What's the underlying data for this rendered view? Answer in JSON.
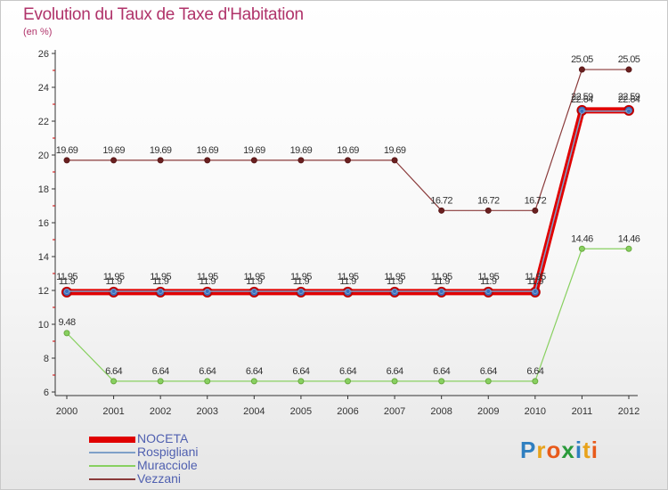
{
  "title": "Evolution du Taux de Taxe d'Habitation",
  "unit_label": "(en %)",
  "logo_letters": [
    "P",
    "r",
    "o",
    "x",
    "i",
    "t",
    "i"
  ],
  "logo_colors": [
    "#2f7fc0",
    "#e8a21a",
    "#e85a1a",
    "#2a9a3a",
    "#2f7fc0",
    "#e8a21a",
    "#e85a1a"
  ],
  "logo_text": "Proxiti",
  "chart_data": {
    "type": "line",
    "title": "Evolution du Taux de Taxe d'Habitation",
    "ylabel": "(en %)",
    "xlabel": "",
    "x": [
      "2000",
      "2001",
      "2002",
      "2003",
      "2004",
      "2005",
      "2006",
      "2007",
      "2008",
      "2009",
      "2010",
      "2011",
      "2012"
    ],
    "ylim": [
      6,
      26
    ],
    "yticks": [
      "6",
      "8",
      "10",
      "12",
      "14",
      "16",
      "18",
      "20",
      "22",
      "24",
      "26"
    ],
    "grid": false,
    "legend_position": "bottom-left",
    "series": [
      {
        "name": "NOCETA",
        "color": "#e00000",
        "values": [
          11.9,
          11.9,
          11.9,
          11.9,
          11.9,
          11.9,
          11.9,
          11.9,
          11.9,
          11.9,
          11.9,
          22.64,
          22.64
        ],
        "labels": [
          "11.9",
          "11.9",
          "11.9",
          "11.9",
          "11.9",
          "11.9",
          "11.9",
          "11.9",
          "11.9",
          "11.9",
          "11.9",
          "22.64",
          "22.64"
        ]
      },
      {
        "name": "Rospigliani",
        "color": "#7fa0c8",
        "values": [
          11.95,
          11.95,
          11.95,
          11.95,
          11.95,
          11.95,
          11.95,
          11.95,
          11.95,
          11.95,
          11.95,
          22.59,
          22.59
        ],
        "labels": [
          "11.95",
          "11.95",
          "11.95",
          "11.95",
          "11.95",
          "11.95",
          "11.95",
          "11.95",
          "11.95",
          "11.95",
          "11.95",
          "22.59",
          "22.59"
        ]
      },
      {
        "name": "Muracciole",
        "color": "#88d060",
        "values": [
          9.48,
          6.64,
          6.64,
          6.64,
          6.64,
          6.64,
          6.64,
          6.64,
          6.64,
          6.64,
          6.64,
          14.46,
          14.46
        ],
        "labels": [
          "9.48",
          "6.64",
          "6.64",
          "6.64",
          "6.64",
          "6.64",
          "6.64",
          "6.64",
          "6.64",
          "6.64",
          "6.64",
          "14.46",
          "14.46"
        ]
      },
      {
        "name": "Vezzani",
        "color": "#8a3a3a",
        "values": [
          19.69,
          19.69,
          19.69,
          19.69,
          19.69,
          19.69,
          19.69,
          19.69,
          16.72,
          16.72,
          16.72,
          25.05,
          25.05
        ],
        "labels": [
          "19.69",
          "19.69",
          "19.69",
          "19.69",
          "19.69",
          "19.69",
          "19.69",
          "19.69",
          "16.72",
          "16.72",
          "16.72",
          "25.05",
          "25.05"
        ]
      }
    ]
  }
}
